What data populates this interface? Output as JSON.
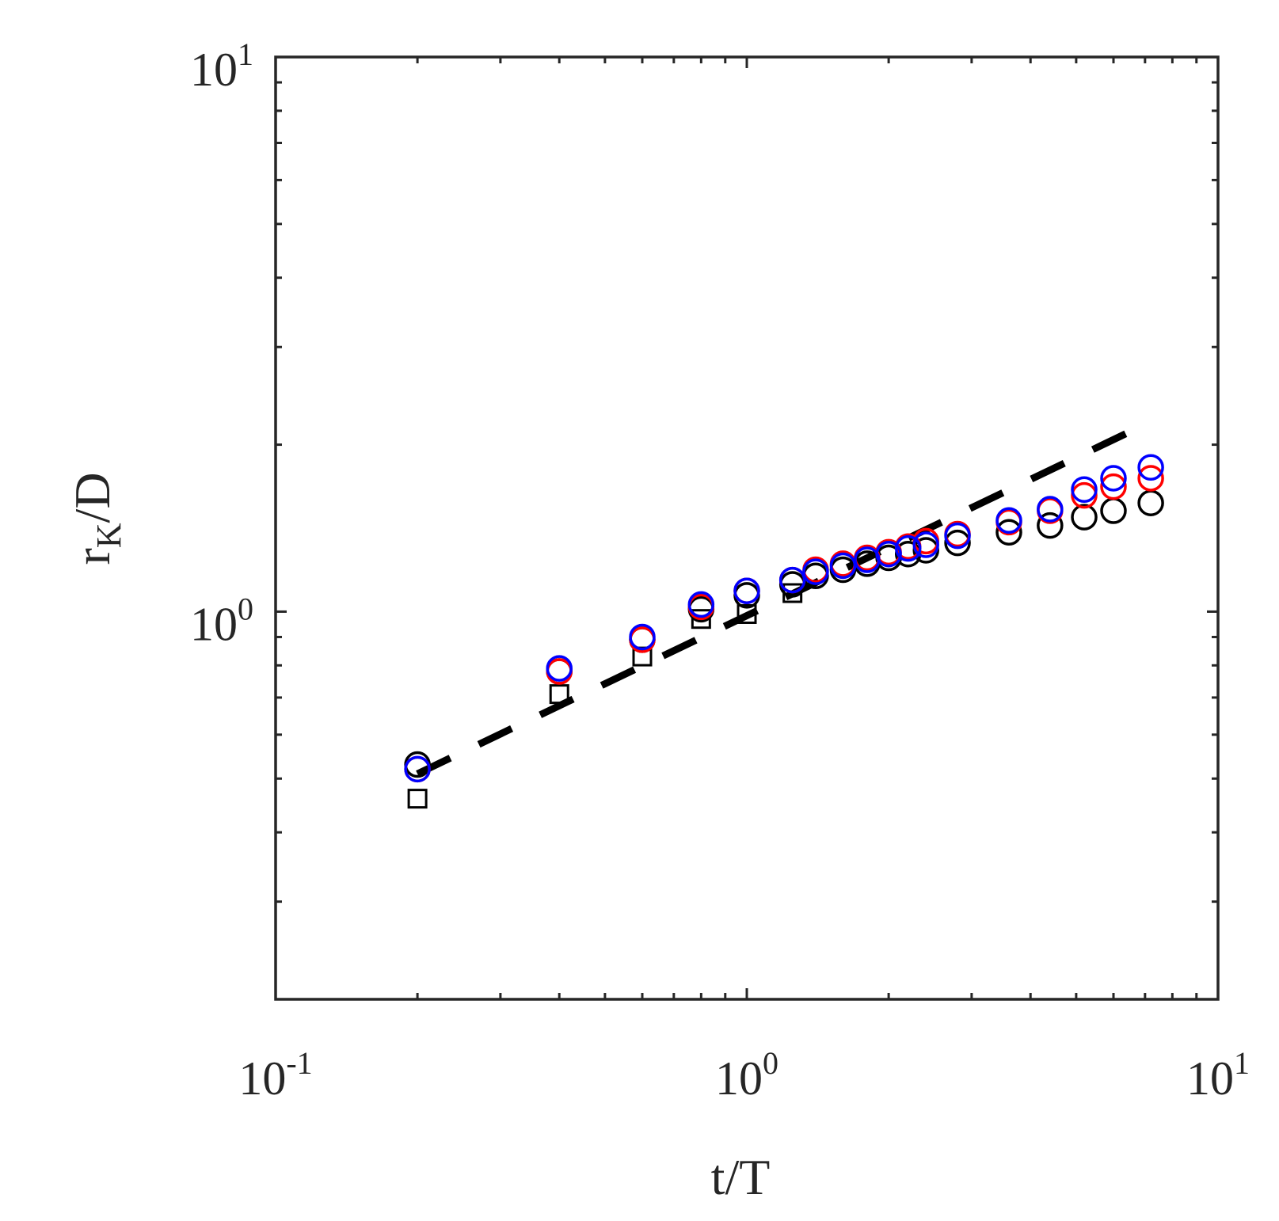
{
  "chart_data": {
    "type": "scatter",
    "x_scale": "log",
    "y_scale": "log",
    "xlim": [
      0.1,
      10
    ],
    "ylim": [
      0.2,
      10
    ],
    "grid": false,
    "title": "",
    "xlabel": "t/T",
    "ylabel": {
      "main": "r",
      "sub": "K",
      "rest": "/D"
    },
    "x_ticks": [
      {
        "value": 0.1,
        "base": "10",
        "exp": "-1"
      },
      {
        "value": 1,
        "base": "10",
        "exp": "0"
      },
      {
        "value": 10,
        "base": "10",
        "exp": "1"
      }
    ],
    "y_ticks": [
      {
        "value": 1,
        "base": "10",
        "exp": "0"
      },
      {
        "value": 10,
        "base": "10",
        "exp": "1"
      }
    ],
    "series": [
      {
        "marker": "square",
        "color": "#000000",
        "x": [
          0.2,
          0.4,
          0.6,
          0.8,
          1.0,
          1.25
        ],
        "y": [
          0.46,
          0.71,
          0.83,
          0.97,
          0.99,
          1.08
        ]
      },
      {
        "marker": "circle",
        "color": "#000000",
        "x": [
          0.2,
          0.4,
          0.6,
          0.8,
          1.0,
          1.25,
          1.4,
          1.6,
          1.8,
          2.0,
          2.2,
          2.4,
          2.8,
          3.6,
          4.4,
          5.2,
          6.0,
          7.2
        ],
        "y": [
          0.53,
          0.78,
          0.89,
          1.01,
          1.07,
          1.12,
          1.16,
          1.19,
          1.22,
          1.25,
          1.27,
          1.29,
          1.33,
          1.39,
          1.43,
          1.48,
          1.52,
          1.57
        ]
      },
      {
        "marker": "circle",
        "color": "#ff0000",
        "x": [
          0.2,
          0.4,
          0.6,
          0.8,
          1.0,
          1.25,
          1.4,
          1.6,
          1.8,
          2.0,
          2.2,
          2.4,
          2.8,
          3.6,
          4.4,
          5.2,
          6.0,
          7.2
        ],
        "y": [
          0.52,
          0.78,
          0.89,
          1.02,
          1.09,
          1.14,
          1.19,
          1.22,
          1.25,
          1.28,
          1.31,
          1.34,
          1.38,
          1.45,
          1.52,
          1.62,
          1.68,
          1.74
        ]
      },
      {
        "marker": "circle",
        "color": "#0000ff",
        "x": [
          0.2,
          0.4,
          0.6,
          0.8,
          1.0,
          1.25,
          1.4,
          1.6,
          1.8,
          2.0,
          2.2,
          2.4,
          2.8,
          3.6,
          4.4,
          5.2,
          6.0,
          7.2
        ],
        "y": [
          0.52,
          0.79,
          0.9,
          1.03,
          1.09,
          1.14,
          1.18,
          1.21,
          1.24,
          1.27,
          1.3,
          1.32,
          1.37,
          1.46,
          1.53,
          1.66,
          1.74,
          1.82
        ]
      }
    ],
    "reference_line": {
      "style": "dashed",
      "color": "#000000",
      "x": [
        0.2,
        7.2
      ],
      "y": [
        0.51,
        2.2
      ]
    }
  }
}
